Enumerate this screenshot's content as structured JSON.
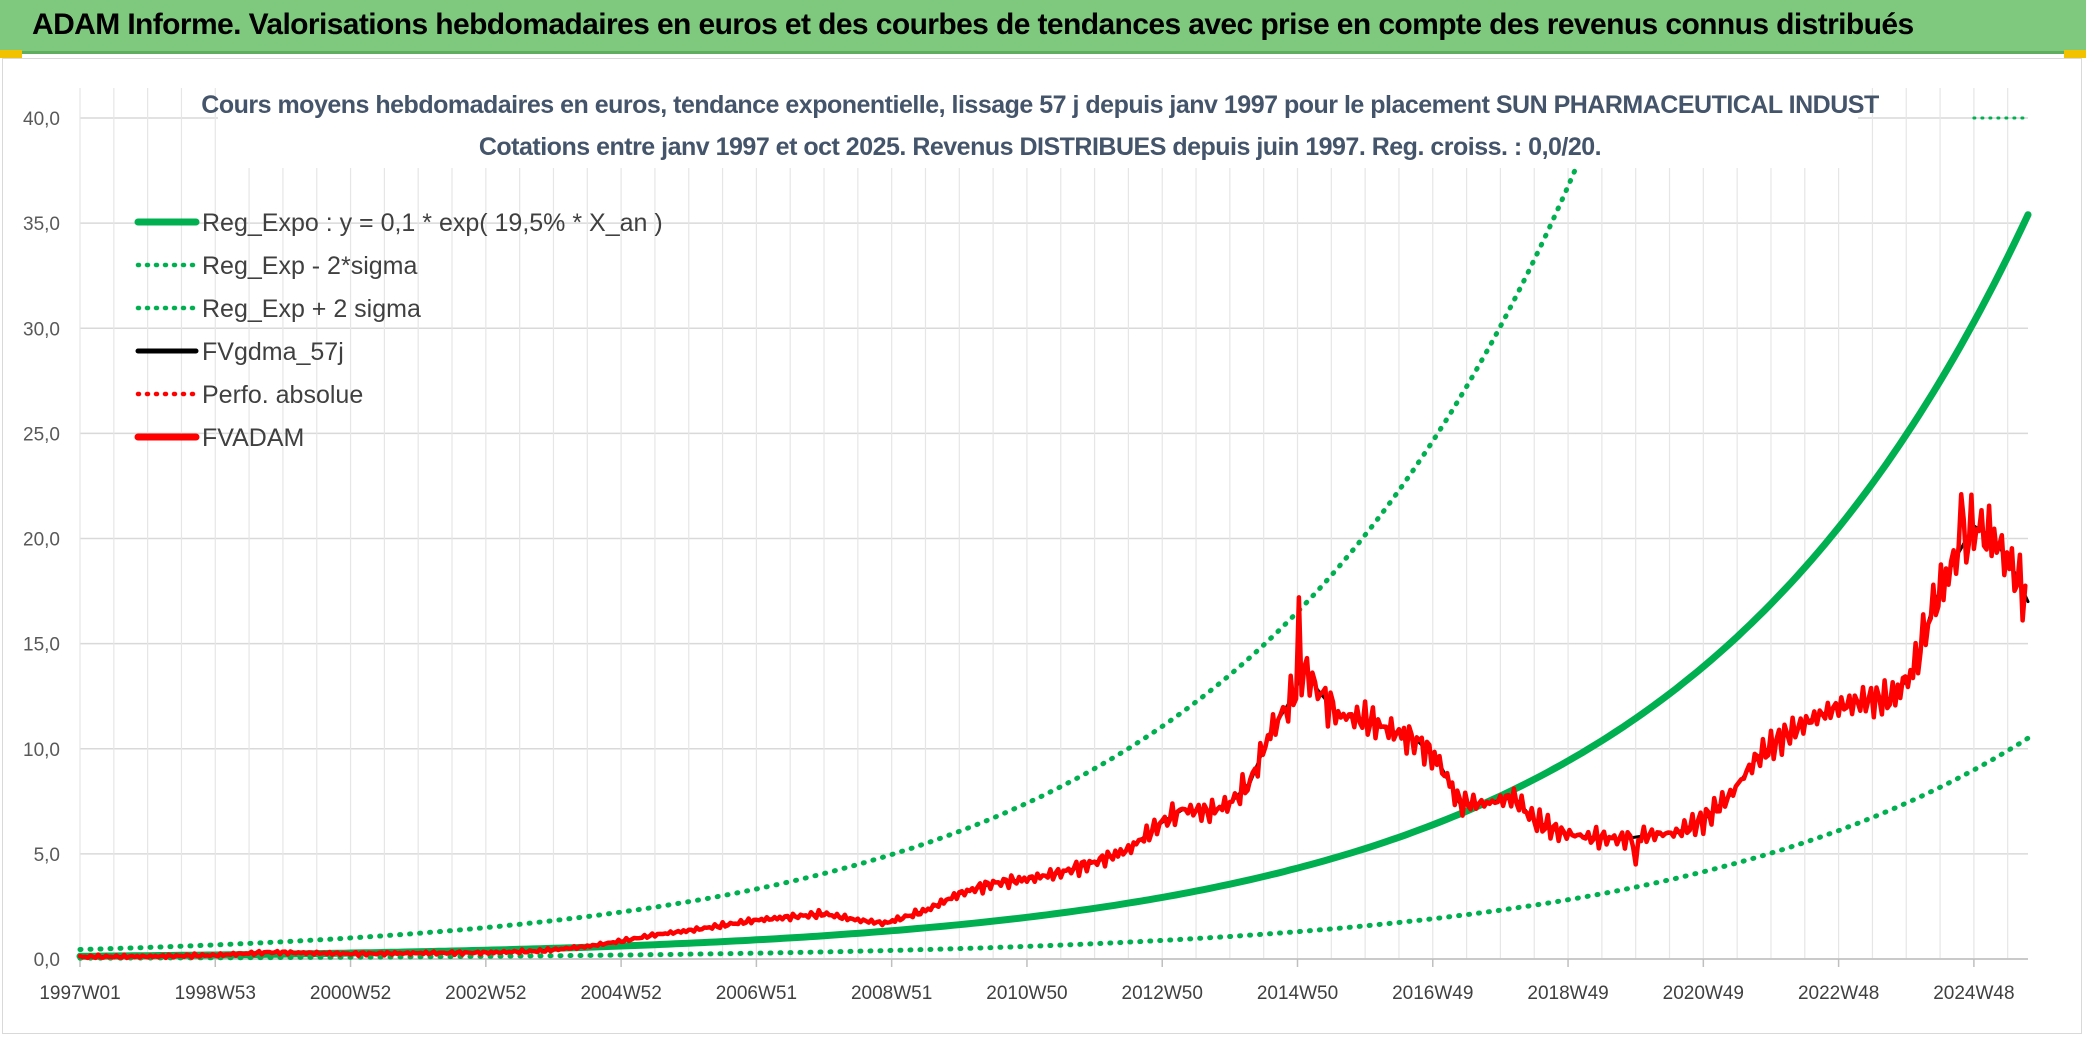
{
  "header": {
    "banner_title": "ADAM Informe. Valorisations hebdomadaires en euros et des courbes de tendances avec prise en compte des revenus connus distribués"
  },
  "chart_data": {
    "type": "line",
    "title": "Cours moyens hebdomadaires en euros, tendance exponentielle, lissage 57 j depuis janv 1997 pour le placement SUN PHARMACEUTICAL INDUST",
    "subtitle": "Cotations entre janv 1997 et oct 2025. Revenus DISTRIBUES depuis juin 1997. Reg. croiss. : 0,0/20.",
    "xlabel": "",
    "ylabel": "",
    "x_tick_labels": [
      "1997W01",
      "1998W53",
      "2000W52",
      "2002W52",
      "2004W52",
      "2006W51",
      "2008W51",
      "2010W50",
      "2012W50",
      "2014W50",
      "2016W49",
      "2018W49",
      "2020W49",
      "2022W48",
      "2024W48"
    ],
    "x_range": [
      1997.0,
      2025.8
    ],
    "y_tick_labels": [
      "0,0",
      "5,0",
      "10,0",
      "15,0",
      "20,0",
      "25,0",
      "30,0",
      "35,0",
      "40,0"
    ],
    "y_tick_values": [
      0,
      5,
      10,
      15,
      20,
      25,
      30,
      35,
      40
    ],
    "ylim": [
      0,
      40
    ],
    "grid": true,
    "legend_position": "top-left",
    "series": [
      {
        "name": "Reg_Expo : y = 0,1 * exp( 19,5% *  X_an )",
        "style": "solid-thick",
        "color": "#00b050",
        "x": [
          1997,
          1999,
          2001,
          2003,
          2005,
          2007,
          2009,
          2011,
          2013,
          2015,
          2017,
          2019,
          2021,
          2023,
          2024,
          2025.8
        ],
        "y": [
          0.13,
          0.19,
          0.28,
          0.41,
          0.62,
          0.91,
          1.35,
          2.0,
          2.95,
          4.3,
          6.4,
          9.4,
          13.9,
          20.5,
          24.9,
          35.4
        ]
      },
      {
        "name": "Reg_Exp - 2*sigma",
        "style": "dotted",
        "color": "#00b050",
        "x": [
          1997,
          1999,
          2001,
          2003,
          2005,
          2007,
          2009,
          2011,
          2013,
          2015,
          2017,
          2019,
          2021,
          2023,
          2025.8
        ],
        "y": [
          0.04,
          0.06,
          0.09,
          0.12,
          0.18,
          0.27,
          0.4,
          0.6,
          0.88,
          1.3,
          1.9,
          2.8,
          4.1,
          6.1,
          10.5
        ]
      },
      {
        "name": "Reg_Exp + 2 sigma",
        "style": "dotted",
        "color": "#00b050",
        "x": [
          1997,
          1999,
          2001,
          2003,
          2005,
          2007,
          2009,
          2011,
          2013,
          2015,
          2017,
          2018.5,
          2019.1
        ],
        "y": [
          0.45,
          0.66,
          0.97,
          1.43,
          2.1,
          3.1,
          4.6,
          6.8,
          10.0,
          14.7,
          21.6,
          29.0,
          37.5
        ]
      },
      {
        "name": "FVgdma_57j",
        "style": "solid",
        "color": "#000000",
        "x": [
          1997,
          1998,
          1999,
          1999.8,
          2000.5,
          2001,
          2002,
          2003,
          2003.8,
          2004.5,
          2005,
          2005.5,
          2006,
          2006.5,
          2007,
          2007.5,
          2008,
          2008.5,
          2008.9,
          2009.5,
          2010,
          2010.5,
          2011,
          2011.5,
          2012,
          2012.5,
          2013,
          2013.3,
          2013.7,
          2014,
          2014.3,
          2014.6,
          2014.9,
          2015.1,
          2015.3,
          2015.6,
          2016,
          2016.5,
          2016.8,
          2017.1,
          2017.4,
          2017.8,
          2018.2,
          2018.5,
          2018.9,
          2019.3,
          2019.8,
          2020.2,
          2020.6,
          2021,
          2021.4,
          2021.8,
          2022.2,
          2022.6,
          2023,
          2023.4,
          2023.8,
          2024.1,
          2024.4,
          2024.7,
          2025,
          2025.3,
          2025.6,
          2025.8
        ],
        "y": [
          0.1,
          0.12,
          0.18,
          0.32,
          0.28,
          0.25,
          0.28,
          0.3,
          0.38,
          0.6,
          0.85,
          1.15,
          1.35,
          1.6,
          1.85,
          2.0,
          2.15,
          1.85,
          1.7,
          2.3,
          3.1,
          3.6,
          3.8,
          4.1,
          4.6,
          5.2,
          6.5,
          7.1,
          7.0,
          7.4,
          8.4,
          10.8,
          12.3,
          13.8,
          12.8,
          11.6,
          11.4,
          10.7,
          10.3,
          9.3,
          7.4,
          7.4,
          7.7,
          6.6,
          6.0,
          5.8,
          5.7,
          5.9,
          6.0,
          6.6,
          7.8,
          9.6,
          10.6,
          11.4,
          12.0,
          12.3,
          12.4,
          13.7,
          16.8,
          18.9,
          20.6,
          20.0,
          18.4,
          17.0
        ]
      },
      {
        "name": "Perfo. absolue",
        "style": "dotted",
        "color": "#ff0000",
        "x": [],
        "y": []
      },
      {
        "name": "FVADAM",
        "style": "solid-thick",
        "color": "#ff0000",
        "x": [
          1997,
          1998,
          1999,
          1999.8,
          2000.5,
          2001,
          2002,
          2003,
          2003.8,
          2004.5,
          2005,
          2005.5,
          2006,
          2006.5,
          2007,
          2007.5,
          2008,
          2008.5,
          2008.9,
          2009.5,
          2010,
          2010.5,
          2011,
          2011.5,
          2012,
          2012.5,
          2013,
          2013.3,
          2013.7,
          2014,
          2014.3,
          2014.6,
          2014.9,
          2015.1,
          2015.3,
          2015.6,
          2016,
          2016.5,
          2016.8,
          2017.1,
          2017.4,
          2017.8,
          2018.2,
          2018.5,
          2018.9,
          2019.3,
          2019.8,
          2020.2,
          2020.6,
          2021,
          2021.4,
          2021.8,
          2022.2,
          2022.6,
          2023,
          2023.4,
          2023.8,
          2024.1,
          2024.4,
          2024.7,
          2025,
          2025.3,
          2025.6,
          2025.8
        ],
        "y": [
          0.1,
          0.12,
          0.18,
          0.32,
          0.28,
          0.25,
          0.28,
          0.3,
          0.38,
          0.6,
          0.85,
          1.15,
          1.35,
          1.6,
          1.85,
          2.0,
          2.15,
          1.85,
          1.7,
          2.3,
          3.1,
          3.6,
          3.8,
          4.1,
          4.6,
          5.2,
          6.5,
          7.1,
          7.0,
          7.4,
          8.4,
          10.8,
          12.3,
          13.8,
          12.8,
          11.6,
          11.4,
          10.7,
          10.3,
          9.3,
          7.4,
          7.4,
          7.7,
          6.6,
          6.0,
          5.8,
          5.7,
          5.9,
          6.0,
          6.6,
          7.8,
          9.6,
          10.6,
          11.4,
          12.0,
          12.3,
          12.4,
          13.7,
          16.8,
          18.9,
          20.6,
          20.0,
          18.4,
          17.0
        ],
        "peaks": [
          {
            "x": 2015.0,
            "y": 17.2
          },
          {
            "x": 2024.8,
            "y": 22.1
          },
          {
            "x": 2020.0,
            "y": 4.5
          }
        ]
      }
    ]
  }
}
